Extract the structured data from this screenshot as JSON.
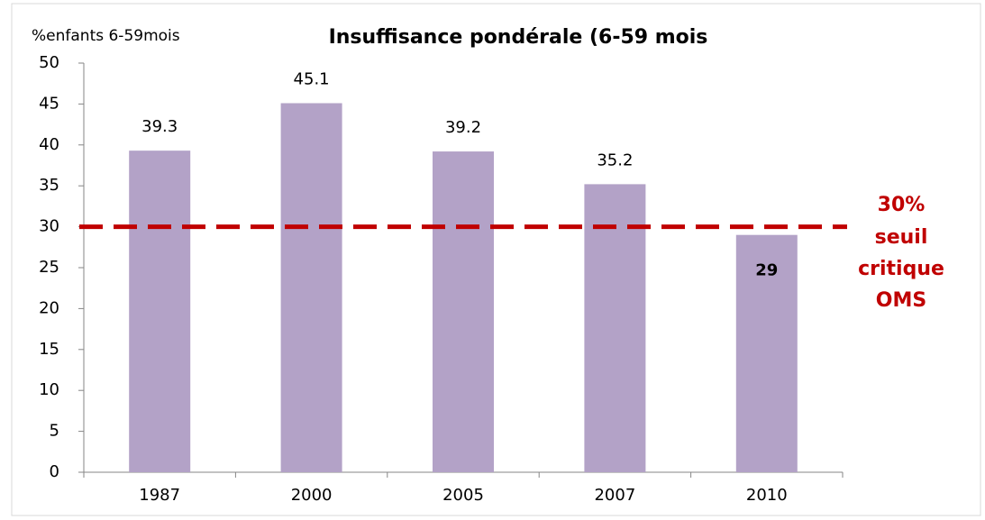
{
  "chart_data": {
    "type": "bar",
    "title": "Insuffisance pondérale (6-59 mois",
    "y_label": "%enfants 6-59mois",
    "categories": [
      "1987",
      "2000",
      "2005",
      "2007",
      "2010"
    ],
    "values": [
      39.3,
      45.1,
      39.2,
      35.2,
      29
    ],
    "color": "#b3a2c7",
    "ylim": [
      0,
      50
    ],
    "yticks": [
      0,
      5,
      10,
      15,
      20,
      25,
      30,
      35,
      40,
      45,
      50
    ],
    "grid": false,
    "threshold": {
      "value": 30,
      "label": "30%",
      "text": [
        "seuil",
        "critique",
        "OMS"
      ],
      "color": "#c00000"
    }
  }
}
